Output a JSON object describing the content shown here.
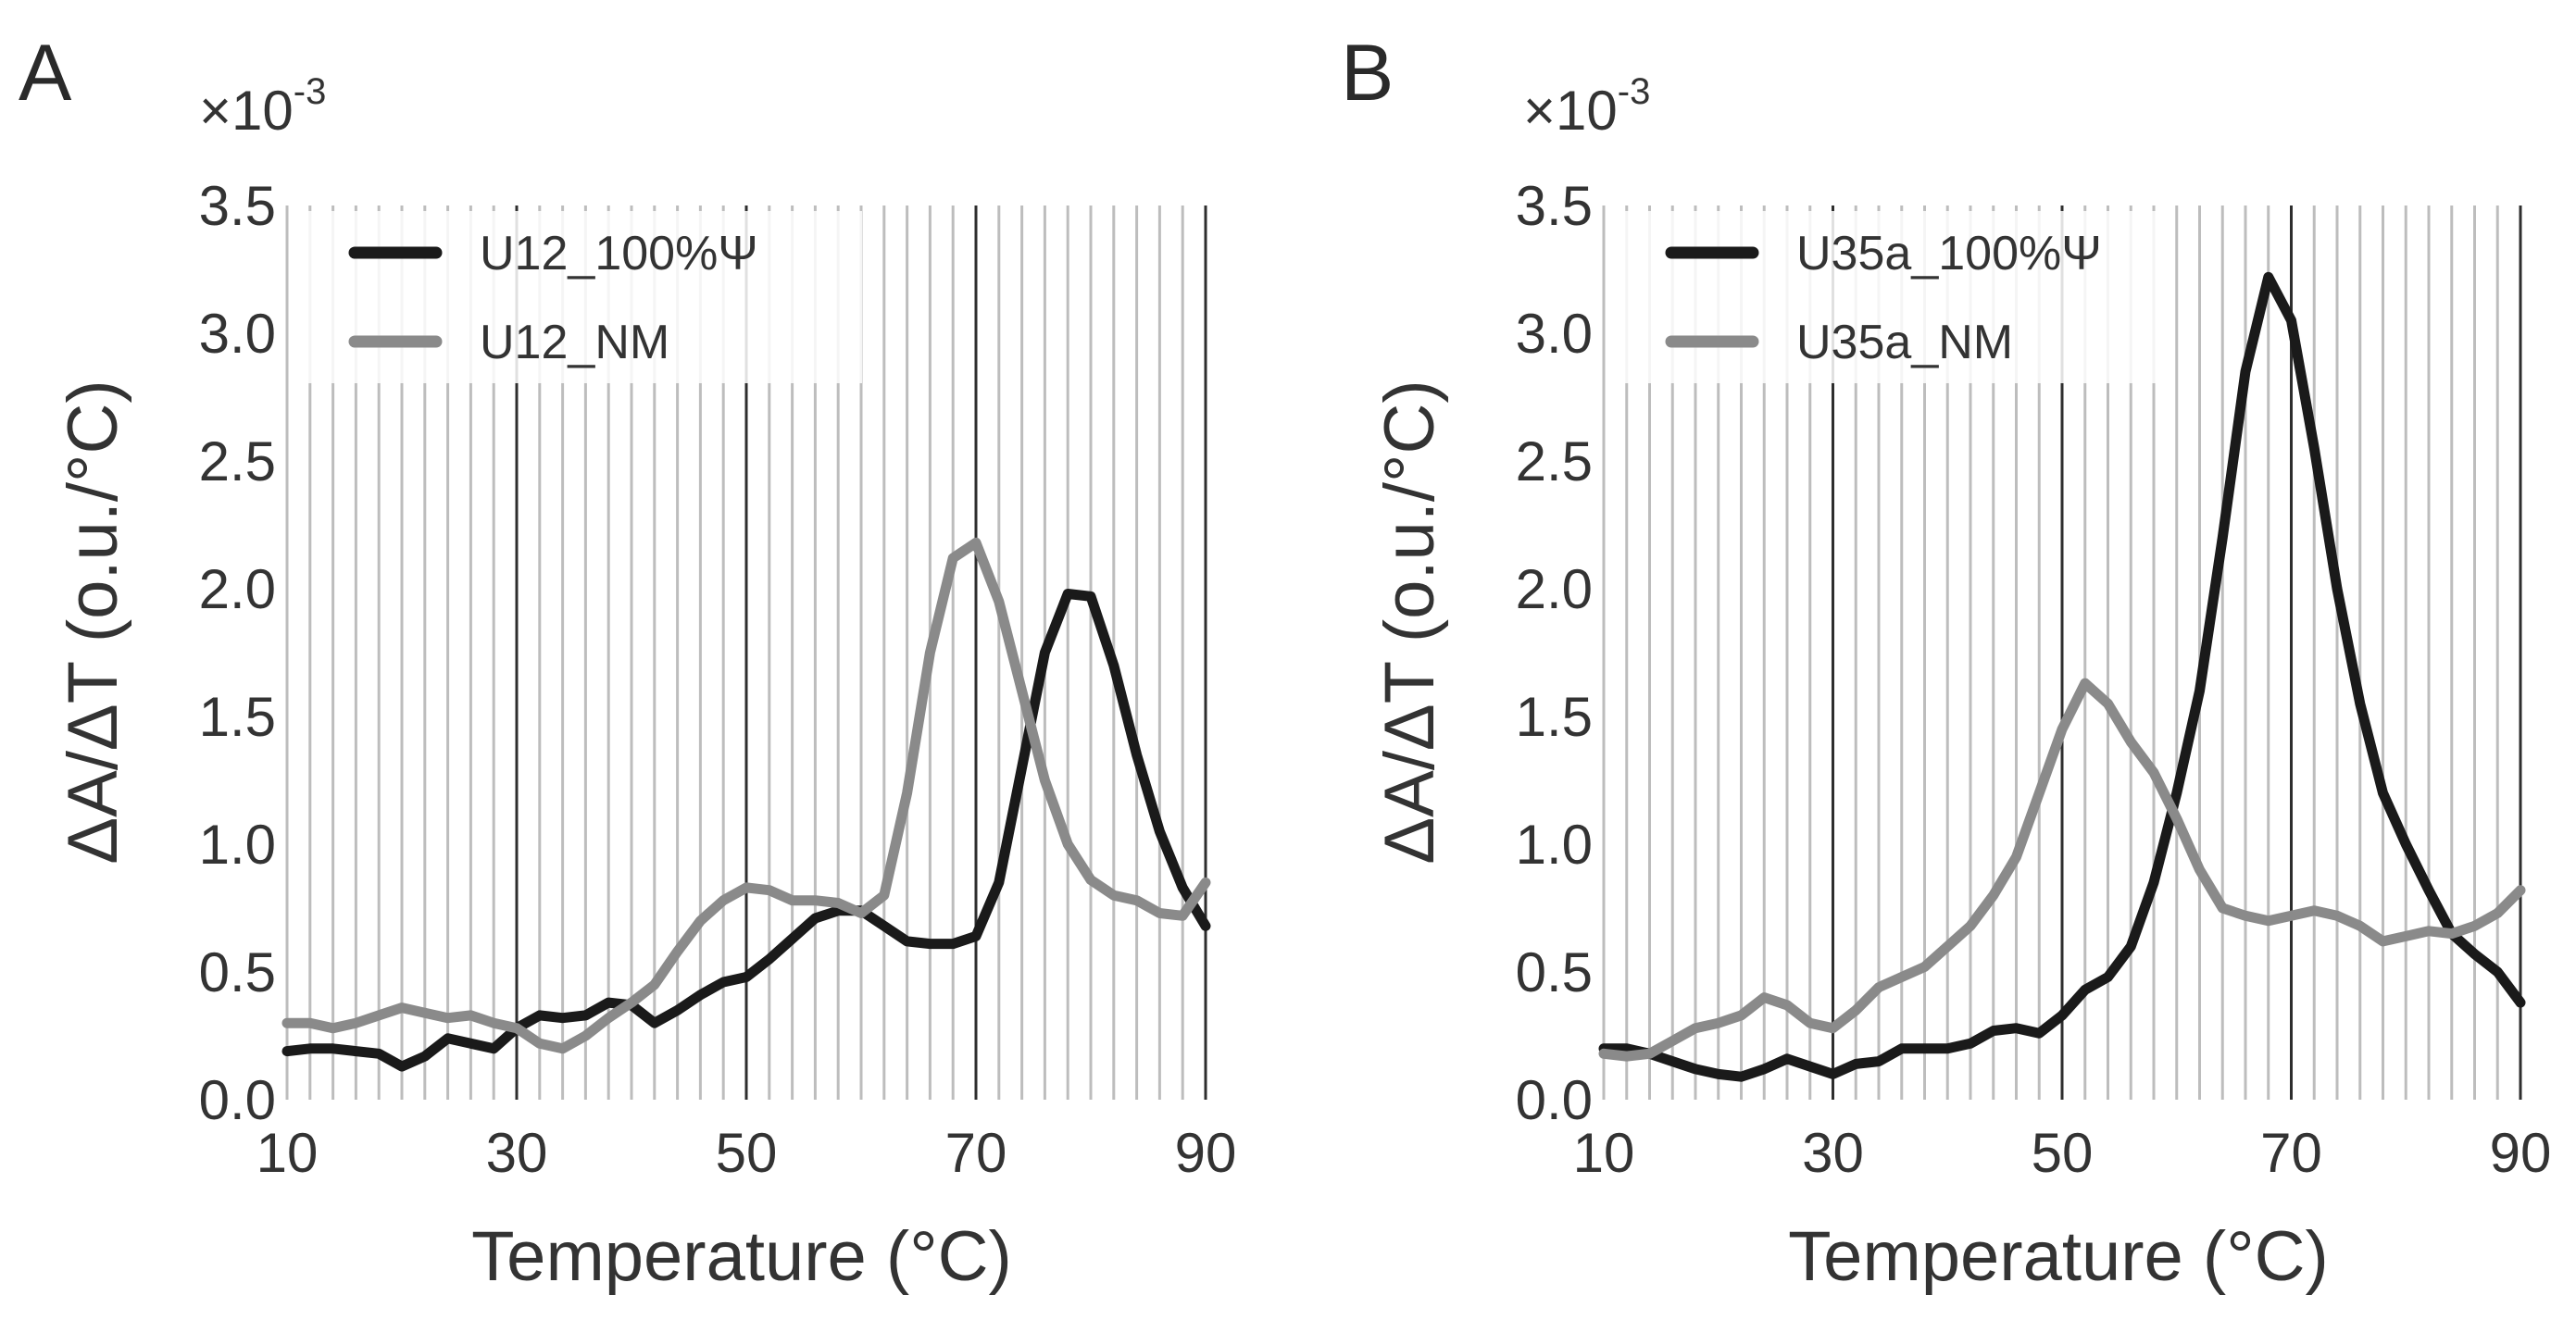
{
  "chart_data": [
    {
      "type": "line",
      "panel_label": "A",
      "xlabel": "Temperature (°C)",
      "ylabel": "ΔA/ΔT (o.u./°C)",
      "y_multiplier": "×10",
      "y_multiplier_exponent": "-3",
      "xlim": [
        10,
        90
      ],
      "ylim": [
        0,
        3.5
      ],
      "xticks": [
        "10",
        "30",
        "50",
        "70",
        "90"
      ],
      "yticks": [
        "0.0",
        "0.5",
        "1.0",
        "1.5",
        "2.0",
        "2.5",
        "3.0",
        "3.5"
      ],
      "grid": "vertical lines every 2 °C, darker at 30, 50, 70",
      "legend_position": "top-left",
      "series": [
        {
          "name": "U12_100%Ψ",
          "color": "#1a1a1a",
          "x": [
            10,
            12,
            14,
            16,
            18,
            20,
            22,
            24,
            26,
            28,
            30,
            32,
            34,
            36,
            38,
            40,
            42,
            44,
            46,
            48,
            50,
            52,
            54,
            56,
            58,
            60,
            62,
            64,
            66,
            68,
            70,
            72,
            74,
            76,
            78,
            80,
            82,
            84,
            86,
            88,
            90
          ],
          "y": [
            0.19,
            0.2,
            0.2,
            0.19,
            0.18,
            0.13,
            0.17,
            0.24,
            0.22,
            0.2,
            0.28,
            0.33,
            0.32,
            0.33,
            0.38,
            0.37,
            0.3,
            0.35,
            0.41,
            0.46,
            0.48,
            0.55,
            0.63,
            0.71,
            0.74,
            0.74,
            0.68,
            0.62,
            0.61,
            0.61,
            0.64,
            0.85,
            1.3,
            1.75,
            1.98,
            1.97,
            1.7,
            1.35,
            1.05,
            0.83,
            0.68
          ]
        },
        {
          "name": "U12_NM",
          "color": "#8a8a8a",
          "x": [
            10,
            12,
            14,
            16,
            18,
            20,
            22,
            24,
            26,
            28,
            30,
            32,
            34,
            36,
            38,
            40,
            42,
            44,
            46,
            48,
            50,
            52,
            54,
            56,
            58,
            60,
            62,
            64,
            66,
            68,
            70,
            72,
            74,
            76,
            78,
            80,
            82,
            84,
            86,
            88,
            90
          ],
          "y": [
            0.3,
            0.3,
            0.28,
            0.3,
            0.33,
            0.36,
            0.34,
            0.32,
            0.33,
            0.3,
            0.28,
            0.22,
            0.2,
            0.25,
            0.32,
            0.38,
            0.45,
            0.58,
            0.7,
            0.78,
            0.83,
            0.82,
            0.78,
            0.78,
            0.77,
            0.73,
            0.8,
            1.2,
            1.75,
            2.12,
            2.18,
            1.95,
            1.6,
            1.25,
            1.0,
            0.86,
            0.8,
            0.78,
            0.73,
            0.72,
            0.85
          ]
        }
      ]
    },
    {
      "type": "line",
      "panel_label": "B",
      "xlabel": "Temperature (°C)",
      "ylabel": "ΔA/ΔT (o.u./°C)",
      "y_multiplier": "×10",
      "y_multiplier_exponent": "-3",
      "xlim": [
        10,
        90
      ],
      "ylim": [
        0,
        3.5
      ],
      "xticks": [
        "10",
        "30",
        "50",
        "70",
        "90"
      ],
      "yticks": [
        "0.0",
        "0.5",
        "1.0",
        "1.5",
        "2.0",
        "2.5",
        "3.0",
        "3.5"
      ],
      "grid": "vertical lines every 2 °C, darker at 30, 50, 70",
      "legend_position": "top-left",
      "series": [
        {
          "name": "U35a_100%Ψ",
          "color": "#1a1a1a",
          "x": [
            10,
            12,
            14,
            16,
            18,
            20,
            22,
            24,
            26,
            28,
            30,
            32,
            34,
            36,
            38,
            40,
            42,
            44,
            46,
            48,
            50,
            52,
            54,
            56,
            58,
            60,
            62,
            64,
            66,
            68,
            70,
            72,
            74,
            76,
            78,
            80,
            82,
            84,
            86,
            88,
            90
          ],
          "y": [
            0.2,
            0.2,
            0.18,
            0.15,
            0.12,
            0.1,
            0.09,
            0.12,
            0.16,
            0.13,
            0.1,
            0.14,
            0.15,
            0.2,
            0.2,
            0.2,
            0.22,
            0.27,
            0.28,
            0.26,
            0.33,
            0.43,
            0.48,
            0.6,
            0.85,
            1.2,
            1.6,
            2.2,
            2.85,
            3.22,
            3.05,
            2.55,
            2.0,
            1.55,
            1.2,
            1.0,
            0.82,
            0.65,
            0.57,
            0.5,
            0.38
          ]
        },
        {
          "name": "U35a_NM",
          "color": "#8a8a8a",
          "x": [
            10,
            12,
            14,
            16,
            18,
            20,
            22,
            24,
            26,
            28,
            30,
            32,
            34,
            36,
            38,
            40,
            42,
            44,
            46,
            48,
            50,
            52,
            54,
            56,
            58,
            60,
            62,
            64,
            66,
            68,
            70,
            72,
            74,
            76,
            78,
            80,
            82,
            84,
            86,
            88,
            90
          ],
          "y": [
            0.18,
            0.17,
            0.18,
            0.23,
            0.28,
            0.3,
            0.33,
            0.4,
            0.37,
            0.3,
            0.28,
            0.35,
            0.44,
            0.48,
            0.52,
            0.6,
            0.68,
            0.8,
            0.95,
            1.2,
            1.45,
            1.63,
            1.55,
            1.4,
            1.28,
            1.1,
            0.9,
            0.75,
            0.72,
            0.7,
            0.72,
            0.74,
            0.72,
            0.68,
            0.62,
            0.64,
            0.66,
            0.65,
            0.68,
            0.73,
            0.82
          ]
        }
      ]
    }
  ]
}
